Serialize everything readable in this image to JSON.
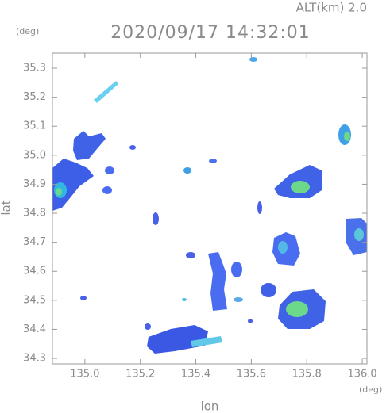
{
  "chart_data": {
    "type": "map",
    "title": "2020/09/17 14:32:01",
    "subtitle": "ALT(km)  2.0",
    "x_label": "lon",
    "y_label": "lat",
    "x_unit": "(deg)",
    "y_unit": "(deg)",
    "xlim": [
      134.883,
      136.017
    ],
    "ylim": [
      34.281,
      35.352
    ],
    "xticks": [
      {
        "value": 135,
        "label": "135.0"
      },
      135.2,
      135.4,
      135.6,
      135.8,
      {
        "value": 136,
        "label": "136.0"
      }
    ],
    "yticks": [
      34.3,
      34.4,
      34.5,
      34.6,
      34.7,
      34.8,
      34.9,
      {
        "value": 35,
        "label": "35.0"
      },
      35.1,
      35.2,
      35.3
    ]
  }
}
